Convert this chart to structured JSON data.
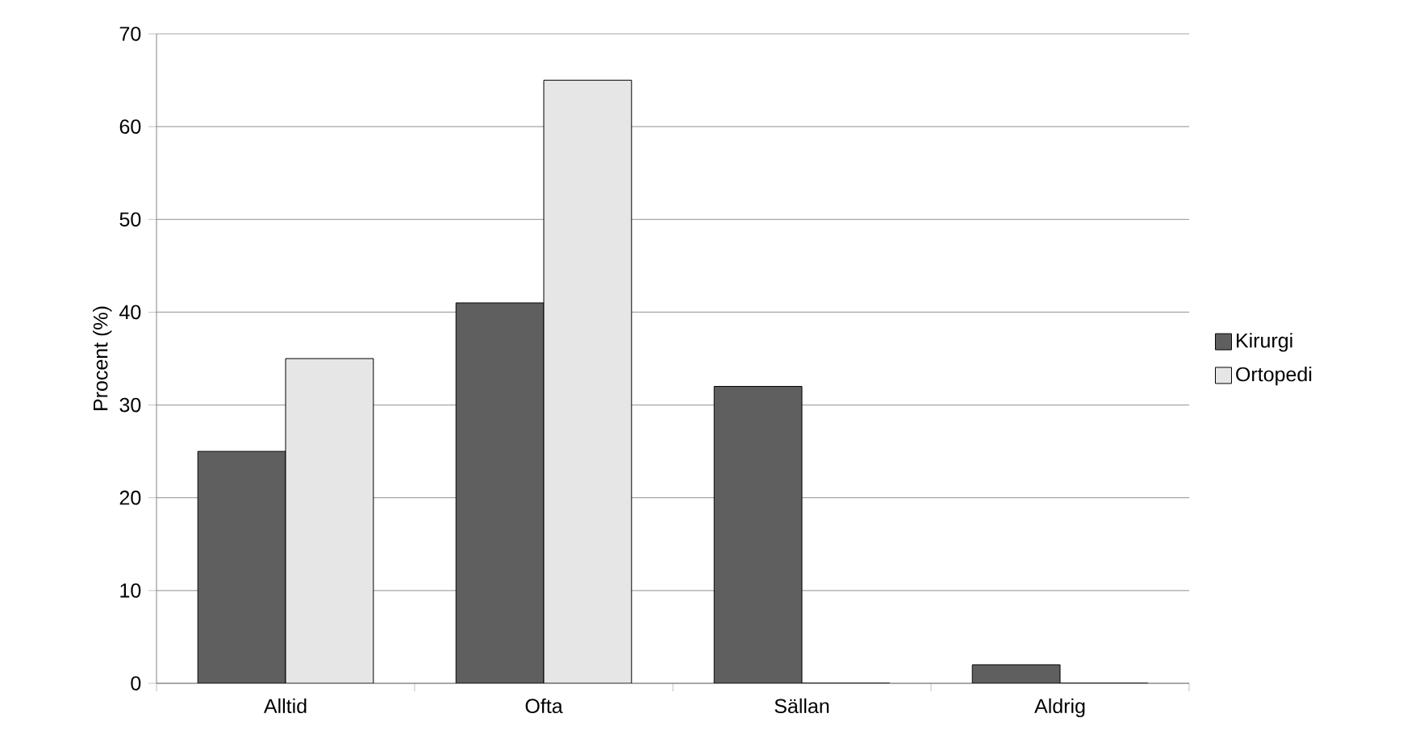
{
  "chart_data": {
    "type": "bar",
    "ylabel": "Procent (%)",
    "categories": [
      "Alltid",
      "Ofta",
      "Sällan",
      "Aldrig"
    ],
    "series": [
      {
        "name": "Kirurgi",
        "color": "#5f5f5f",
        "values": [
          25,
          41,
          32,
          2
        ]
      },
      {
        "name": "Ortopedi",
        "color": "#e6e6e6",
        "values": [
          35,
          65,
          0,
          0
        ]
      }
    ],
    "ylim": [
      0,
      70
    ],
    "yticks": [
      0,
      10,
      20,
      30,
      40,
      50,
      60,
      70
    ],
    "grid": "y",
    "legend": "right"
  }
}
